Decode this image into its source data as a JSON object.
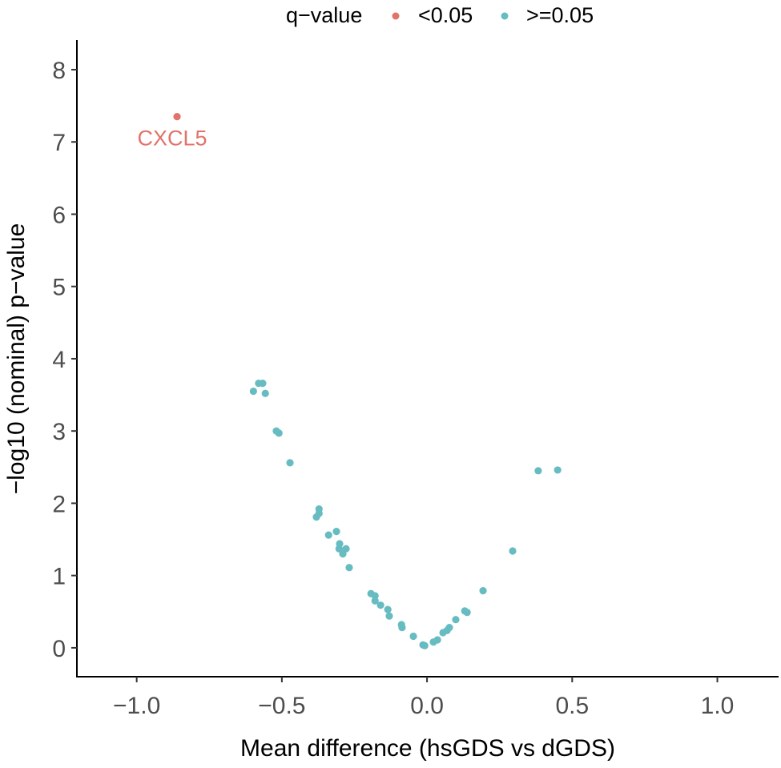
{
  "chart_data": {
    "type": "scatter",
    "title": "",
    "xlabel": "Mean difference (hsGDS vs dGDS)",
    "ylabel": "−log10 (nominal) p−value",
    "xlim": [
      -1.206,
      1.211
    ],
    "ylim": [
      -0.4,
      8.41
    ],
    "xticks": [
      -1.0,
      -0.5,
      0.0,
      0.5,
      1.0
    ],
    "xtick_labels": [
      "−1.0",
      "−0.5",
      "0.0",
      "0.5",
      "1.0"
    ],
    "yticks": [
      0,
      1,
      2,
      3,
      4,
      5,
      6,
      7,
      8
    ],
    "ytick_labels": [
      "0",
      "1",
      "2",
      "3",
      "4",
      "5",
      "6",
      "7",
      "8"
    ],
    "grid": false,
    "legend": {
      "title": "q−value",
      "placement": "top",
      "entries": [
        {
          "label": "<0.05",
          "color": "#E0736A"
        },
        {
          "label": ">=0.05",
          "color": "#67BCC1"
        }
      ]
    },
    "series": [
      {
        "name": "<0.05",
        "color": "#E0736A",
        "points": [
          {
            "x": -0.861,
            "y": 7.35,
            "label": "CXCL5"
          }
        ]
      },
      {
        "name": ">=0.05",
        "color": "#67BCC1",
        "points": [
          {
            "x": -0.598,
            "y": 3.55
          },
          {
            "x": -0.58,
            "y": 3.66
          },
          {
            "x": -0.566,
            "y": 3.66
          },
          {
            "x": -0.557,
            "y": 3.52
          },
          {
            "x": -0.519,
            "y": 3.0
          },
          {
            "x": -0.51,
            "y": 2.97
          },
          {
            "x": -0.472,
            "y": 2.56
          },
          {
            "x": -0.372,
            "y": 1.92
          },
          {
            "x": -0.372,
            "y": 1.86
          },
          {
            "x": -0.381,
            "y": 1.81
          },
          {
            "x": -0.339,
            "y": 1.56
          },
          {
            "x": -0.312,
            "y": 1.61
          },
          {
            "x": -0.301,
            "y": 1.44
          },
          {
            "x": -0.303,
            "y": 1.37
          },
          {
            "x": -0.279,
            "y": 1.37
          },
          {
            "x": -0.29,
            "y": 1.3
          },
          {
            "x": -0.268,
            "y": 1.11
          },
          {
            "x": -0.193,
            "y": 0.75
          },
          {
            "x": -0.179,
            "y": 0.72
          },
          {
            "x": -0.179,
            "y": 0.65
          },
          {
            "x": -0.16,
            "y": 0.59
          },
          {
            "x": -0.135,
            "y": 0.53
          },
          {
            "x": -0.13,
            "y": 0.44
          },
          {
            "x": -0.088,
            "y": 0.32
          },
          {
            "x": -0.086,
            "y": 0.28
          },
          {
            "x": -0.047,
            "y": 0.16
          },
          {
            "x": -0.014,
            "y": 0.04
          },
          {
            "x": -0.008,
            "y": 0.03
          },
          {
            "x": 0.022,
            "y": 0.08
          },
          {
            "x": 0.036,
            "y": 0.11
          },
          {
            "x": 0.055,
            "y": 0.21
          },
          {
            "x": 0.069,
            "y": 0.24
          },
          {
            "x": 0.077,
            "y": 0.28
          },
          {
            "x": 0.099,
            "y": 0.39
          },
          {
            "x": 0.13,
            "y": 0.51
          },
          {
            "x": 0.138,
            "y": 0.49
          },
          {
            "x": 0.193,
            "y": 0.79
          },
          {
            "x": 0.295,
            "y": 1.34
          },
          {
            "x": 0.383,
            "y": 2.45
          },
          {
            "x": 0.45,
            "y": 2.46
          }
        ]
      }
    ]
  }
}
